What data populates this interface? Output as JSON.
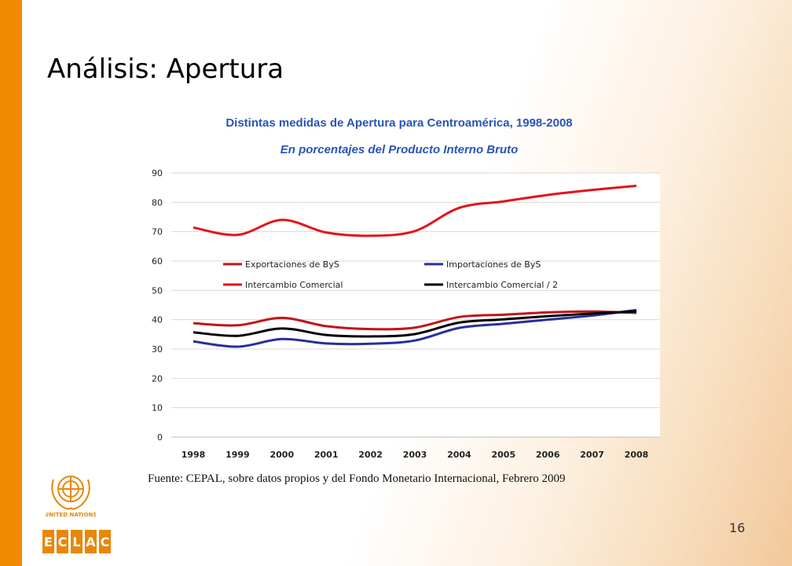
{
  "slide": {
    "title": "Análisis: Apertura",
    "source": "Fuente: CEPAL, sobre datos propios y del Fondo Monetario Internacional, Febrero 2009",
    "page_number": "16",
    "logo_text": "UNITED NATIONS",
    "logo_letters": [
      "E",
      "C",
      "L",
      "A",
      "C"
    ],
    "colors": {
      "accent_bar": "#f08a00",
      "title_blue": "#2a55b6"
    }
  },
  "chart_data": {
    "type": "line",
    "title": "Distintas medidas de Apertura para Centroamérica, 1998-2008",
    "subtitle": "En porcentajes del Producto Interno Bruto",
    "categories": [
      "1998",
      "1999",
      "2000",
      "2001",
      "2002",
      "2003",
      "2004",
      "2005",
      "2006",
      "2007",
      "2008"
    ],
    "ylim": [
      0,
      90
    ],
    "yticks": [
      0,
      10,
      20,
      30,
      40,
      50,
      60,
      70,
      80,
      90
    ],
    "grid": true,
    "legend_position": "center",
    "series": [
      {
        "name": "Exportaciones de ByS",
        "color": "#c0151a",
        "values": [
          38.8,
          38.1,
          40.6,
          37.8,
          36.8,
          37.3,
          40.9,
          41.7,
          42.5,
          42.8,
          42.3
        ]
      },
      {
        "name": "Importaciones de ByS",
        "color": "#27309a",
        "values": [
          32.6,
          30.8,
          33.4,
          31.9,
          31.8,
          32.9,
          37.2,
          38.6,
          40.0,
          41.4,
          43.3
        ]
      },
      {
        "name": "Intercambio Comercial",
        "color": "#e3131b",
        "values": [
          71.4,
          68.9,
          74.0,
          69.7,
          68.6,
          70.2,
          78.1,
          80.3,
          82.5,
          84.2,
          85.6
        ]
      },
      {
        "name": "Intercambio Comercial / 2",
        "color": "#000000",
        "values": [
          35.7,
          34.5,
          37.0,
          34.8,
          34.3,
          35.1,
          39.0,
          40.1,
          41.2,
          42.1,
          42.8
        ]
      }
    ]
  }
}
